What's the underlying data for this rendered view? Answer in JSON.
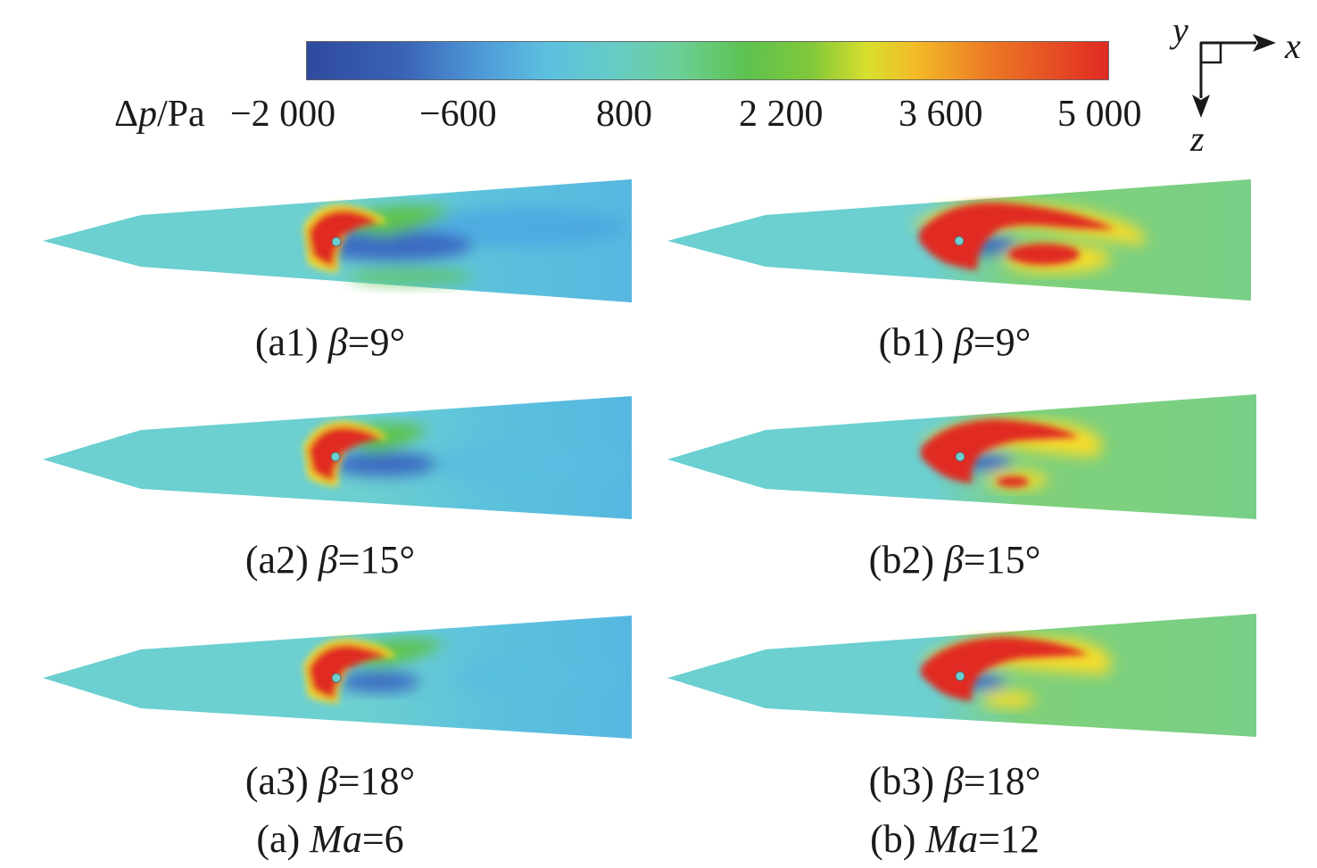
{
  "colorbar": {
    "quantity": "Δ",
    "quantity_symbol": "p",
    "unit": "/Pa",
    "ticks": [
      "−2 000",
      "−600",
      "800",
      "2 200",
      "3 600",
      "5 000"
    ],
    "range": [
      -2000,
      5000
    ],
    "colors": [
      "#2e4a9e",
      "#3a73c4",
      "#4fb0de",
      "#62c9cf",
      "#6fcf95",
      "#64c552",
      "#8dcb3a",
      "#e8e02c",
      "#f1a22a",
      "#ea6a24",
      "#e02a23"
    ]
  },
  "axes": {
    "x": "x",
    "y": "y",
    "z": "z"
  },
  "panels": [
    {
      "id": "a1",
      "prefix": "(a1) ",
      "beta_symbol": "β",
      "beta_value": "=9°"
    },
    {
      "id": "a2",
      "prefix": "(a2) ",
      "beta_symbol": "β",
      "beta_value": "=15°"
    },
    {
      "id": "a3",
      "prefix": "(a3) ",
      "beta_symbol": "β",
      "beta_value": "=18°"
    },
    {
      "id": "b1",
      "prefix": "(b1) ",
      "beta_symbol": "β",
      "beta_value": "=9°"
    },
    {
      "id": "b2",
      "prefix": "(b2) ",
      "beta_symbol": "β",
      "beta_value": "=15°"
    },
    {
      "id": "b3",
      "prefix": "(b3) ",
      "beta_symbol": "β",
      "beta_value": "=18°"
    }
  ],
  "groups": [
    {
      "prefix": "(a) ",
      "ma_symbol": "Ma",
      "ma_value": "=6"
    },
    {
      "prefix": "(b) ",
      "ma_symbol": "Ma",
      "ma_value": "=12"
    }
  ]
}
